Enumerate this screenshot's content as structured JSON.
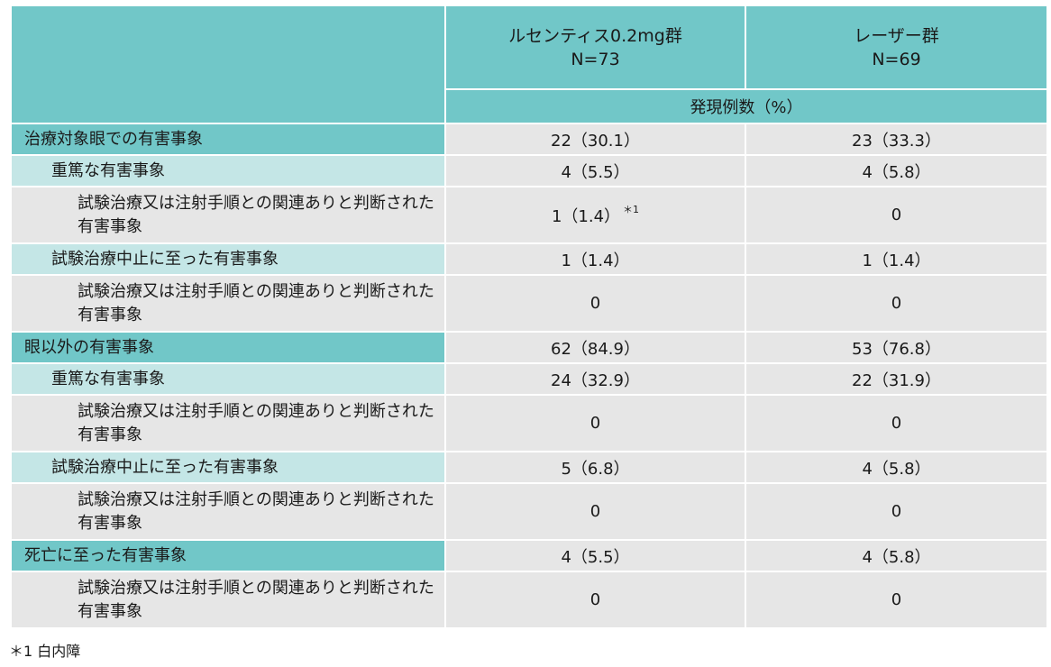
{
  "header": {
    "groups": [
      {
        "name": "ルセンティス0.2mg群",
        "n": "N=73"
      },
      {
        "name": "レーザー群",
        "n": "N=69"
      }
    ],
    "subheader": "発現例数（%）"
  },
  "rows": [
    {
      "label": "治療対象眼での有害事象",
      "values": [
        "22（30.1）",
        "23（33.3）"
      ]
    },
    {
      "label": "重篤な有害事象",
      "values": [
        "4（5.5）",
        "4（5.8）"
      ]
    },
    {
      "label": "試験治療又は注射手順との関連ありと判断された有害事象",
      "values": [
        "1（1.4）",
        "0"
      ],
      "mark": "＊1"
    },
    {
      "label": "試験治療中止に至った有害事象",
      "values": [
        "1（1.4）",
        "1（1.4）"
      ]
    },
    {
      "label": "試験治療又は注射手順との関連ありと判断された有害事象",
      "values": [
        "0",
        "0"
      ]
    },
    {
      "label": "眼以外の有害事象",
      "values": [
        "62（84.9）",
        "53（76.8）"
      ]
    },
    {
      "label": "重篤な有害事象",
      "values": [
        "24（32.9）",
        "22（31.9）"
      ]
    },
    {
      "label": "試験治療又は注射手順との関連ありと判断された有害事象",
      "values": [
        "0",
        "0"
      ]
    },
    {
      "label": "試験治療中止に至った有害事象",
      "values": [
        "5（6.8）",
        "4（5.8）"
      ]
    },
    {
      "label": "試験治療又は注射手順との関連ありと判断された有害事象",
      "values": [
        "0",
        "0"
      ]
    },
    {
      "label": "死亡に至った有害事象",
      "values": [
        "4（5.5）",
        "4（5.8）"
      ]
    },
    {
      "label": "試験治療又は注射手順との関連ありと判断された有害事象",
      "values": [
        "0",
        "0"
      ]
    }
  ],
  "footnote": "＊1 白内障"
}
